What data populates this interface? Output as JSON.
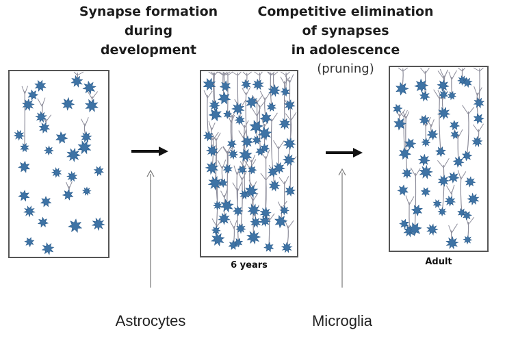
{
  "headings": {
    "formation": {
      "lines": [
        "Synapse formation",
        "during",
        "development"
      ]
    },
    "elimination": {
      "lines": [
        "Competitive elimination",
        "of synapses",
        "in adolescence"
      ],
      "note": "(pruning)"
    }
  },
  "stages": [
    {
      "label": "",
      "density": "sparse"
    },
    {
      "label": "6 years",
      "density": "dense"
    },
    {
      "label": "Adult",
      "density": "intermediate"
    }
  ],
  "agents": {
    "formation": "Astrocytes",
    "elimination": "Microglia"
  },
  "colors": {
    "neuron": "#3e73a5",
    "neuron_dark": "#2d5d8c",
    "dendrite": "#8c8c9a",
    "border": "#555555",
    "arrow": "#111111",
    "thin_arrow": "#777777"
  }
}
